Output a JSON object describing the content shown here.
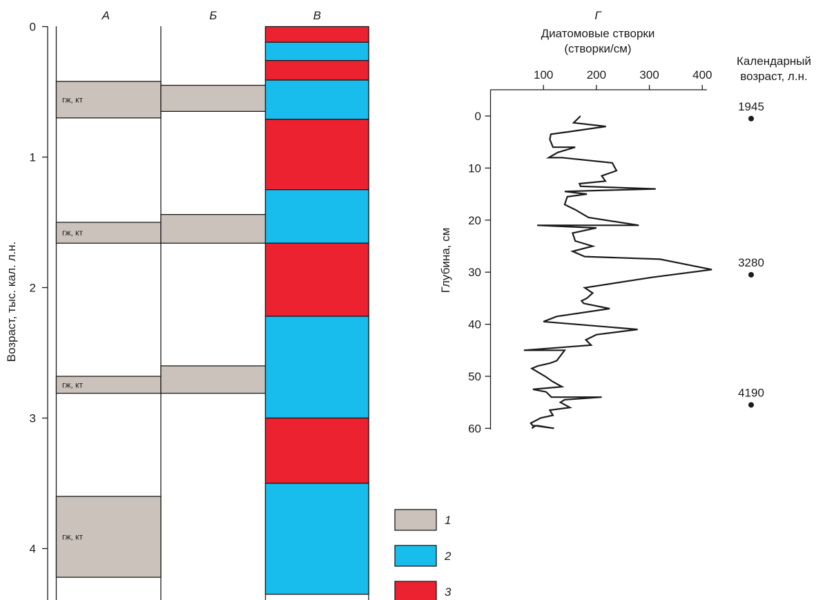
{
  "colors": {
    "grey": "#cbc3bb",
    "blue": "#18bdee",
    "red": "#ec2231",
    "line": "#1a1a1a"
  },
  "chart_data": [
    {
      "type": "bar",
      "ylabel": "Возраст, тыс. кал. л.н.",
      "ylim": [
        0,
        4.35
      ],
      "yticks": [
        "0",
        "1",
        "2",
        "3",
        "4"
      ],
      "columns": [
        "А",
        "Б",
        "В"
      ],
      "column_A": [
        {
          "from": 0.42,
          "to": 0.7,
          "label": "гж, кт"
        },
        {
          "from": 1.5,
          "to": 1.66,
          "label": "гж, кт"
        },
        {
          "from": 2.68,
          "to": 2.81,
          "label": "гж, кт"
        },
        {
          "from": 3.6,
          "to": 4.22,
          "label": "гж, кт"
        }
      ],
      "column_B": [
        {
          "from": 0.45,
          "to": 0.65
        },
        {
          "from": 1.44,
          "to": 1.66
        },
        {
          "from": 2.6,
          "to": 2.81
        }
      ],
      "column_V": [
        {
          "from": 0.0,
          "to": 0.12,
          "type": 3
        },
        {
          "from": 0.12,
          "to": 0.26,
          "type": 2
        },
        {
          "from": 0.26,
          "to": 0.41,
          "type": 3
        },
        {
          "from": 0.41,
          "to": 0.71,
          "type": 2
        },
        {
          "from": 0.71,
          "to": 1.25,
          "type": 3
        },
        {
          "from": 1.25,
          "to": 1.66,
          "type": 2
        },
        {
          "from": 1.66,
          "to": 2.22,
          "type": 3
        },
        {
          "from": 2.22,
          "to": 3.0,
          "type": 2
        },
        {
          "from": 3.0,
          "to": 3.5,
          "type": 3
        },
        {
          "from": 3.5,
          "to": 4.35,
          "type": 2
        }
      ],
      "legend": [
        "1",
        "2",
        "3"
      ]
    },
    {
      "type": "line",
      "panel": "Г",
      "title": "Диатомовые створки\n(створки/см)",
      "ylabel": "Глубина, см",
      "xlim": [
        0,
        420
      ],
      "ylim": [
        0,
        60
      ],
      "xticks": [
        "100",
        "200",
        "300",
        "400"
      ],
      "yticks": [
        "0",
        "10",
        "20",
        "30",
        "40",
        "50",
        "60"
      ],
      "series": [
        {
          "points": [
            [
              170,
              0
            ],
            [
              157,
              1.3
            ],
            [
              218,
              2
            ],
            [
              150,
              3
            ],
            [
              114,
              3.5
            ],
            [
              112,
              4.5
            ],
            [
              118,
              6
            ],
            [
              160,
              6
            ],
            [
              127,
              7
            ],
            [
              110,
              8
            ],
            [
              135,
              8
            ],
            [
              230,
              9
            ],
            [
              238,
              10.5
            ],
            [
              210,
              11.5
            ],
            [
              217,
              12.5
            ],
            [
              168,
              13
            ],
            [
              170,
              13.5
            ],
            [
              312,
              14
            ],
            [
              140,
              14.5
            ],
            [
              182,
              15
            ],
            [
              145,
              15.5
            ],
            [
              140,
              17
            ],
            [
              160,
              18
            ],
            [
              185,
              19.5
            ],
            [
              280,
              21
            ],
            [
              88,
              21
            ],
            [
              200,
              21.5
            ],
            [
              155,
              22.5
            ],
            [
              160,
              24
            ],
            [
              193,
              25
            ],
            [
              155,
              26
            ],
            [
              178,
              27
            ],
            [
              320,
              27.5
            ],
            [
              418,
              29.5
            ],
            [
              305,
              31
            ],
            [
              178,
              33
            ],
            [
              193,
              34
            ],
            [
              182,
              35
            ],
            [
              172,
              35.5
            ],
            [
              176,
              36
            ],
            [
              225,
              37
            ],
            [
              125,
              38.5
            ],
            [
              100,
              39.5
            ],
            [
              278,
              41
            ],
            [
              200,
              42
            ],
            [
              180,
              43
            ],
            [
              190,
              44
            ],
            [
              63,
              45
            ],
            [
              140,
              45
            ],
            [
              125,
              47
            ],
            [
              112,
              47.5
            ],
            [
              90,
              48
            ],
            [
              78,
              48.5
            ],
            [
              103,
              50
            ],
            [
              117,
              51
            ],
            [
              135,
              52
            ],
            [
              80,
              52.5
            ],
            [
              105,
              53
            ],
            [
              115,
              54
            ],
            [
              210,
              54
            ],
            [
              140,
              54.5
            ],
            [
              132,
              55
            ],
            [
              150,
              56
            ],
            [
              112,
              56.5
            ],
            [
              118,
              57.5
            ],
            [
              95,
              58
            ],
            [
              76,
              59
            ],
            [
              80,
              59.5
            ],
            [
              90,
              59.5
            ],
            [
              120,
              60
            ],
            [
              85,
              59.5
            ],
            [
              78,
              60
            ]
          ]
        }
      ],
      "calendar_ages": {
        "title": "Календарный\nвозраст, л.н.",
        "points": [
          {
            "depth": 0.5,
            "label": "1945"
          },
          {
            "depth": 30.5,
            "label": "3280"
          },
          {
            "depth": 55.5,
            "label": "4190"
          }
        ]
      }
    }
  ]
}
